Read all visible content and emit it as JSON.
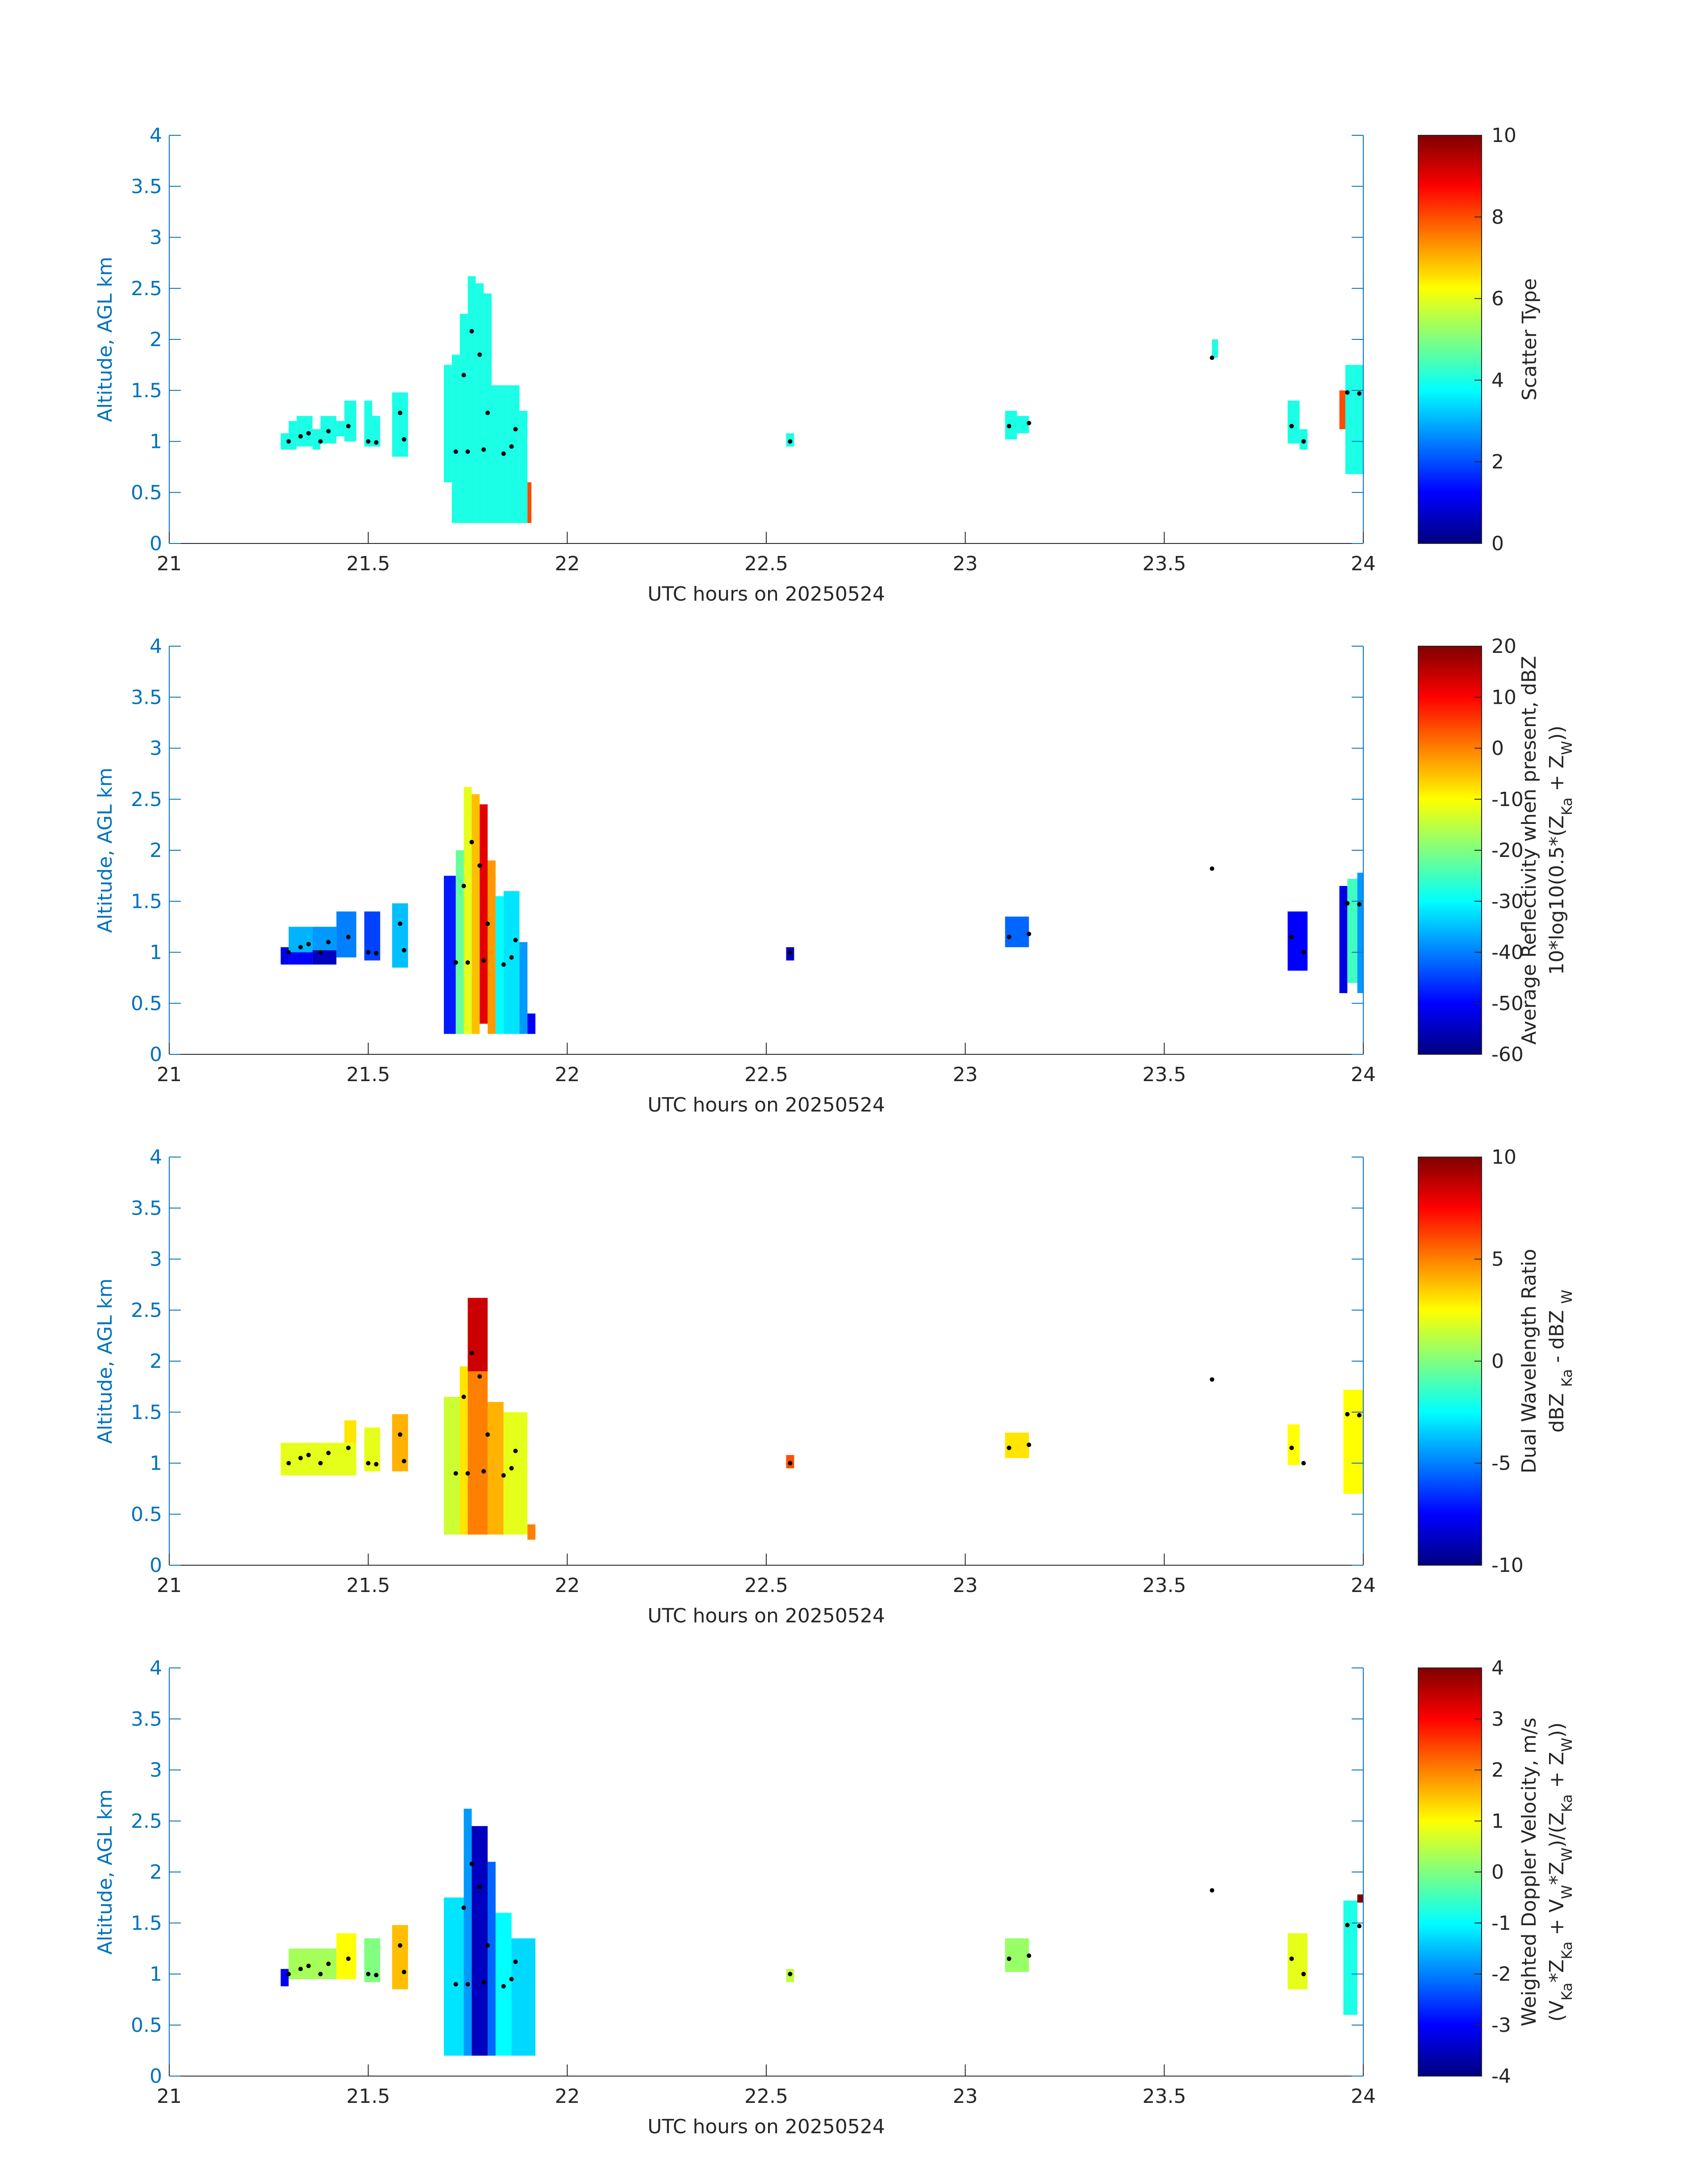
{
  "chart_data": [
    {
      "type": "heatmap",
      "xlabel": "UTC hours on 20250524",
      "ylabel": "Altitude, AGL km",
      "xlim": [
        21,
        24
      ],
      "ylim": [
        0,
        4
      ],
      "xticks": [
        21,
        21.5,
        22,
        22.5,
        23,
        23.5,
        24
      ],
      "yticks": [
        0,
        0.5,
        1,
        1.5,
        2,
        2.5,
        3,
        3.5,
        4
      ],
      "colormap": "jet",
      "clim": [
        0,
        10
      ],
      "cticks": [
        0,
        2,
        4,
        6,
        8,
        10
      ],
      "colorbar_label": [
        [
          "Scatter Type"
        ]
      ],
      "cells": [
        [
          21.28,
          21.3,
          0.92,
          1.08,
          4
        ],
        [
          21.3,
          21.32,
          0.92,
          1.2,
          4
        ],
        [
          21.32,
          21.36,
          0.95,
          1.25,
          4
        ],
        [
          21.36,
          21.38,
          0.92,
          1.12,
          4
        ],
        [
          21.38,
          21.42,
          0.98,
          1.25,
          4
        ],
        [
          21.42,
          21.44,
          1.05,
          1.2,
          4
        ],
        [
          21.44,
          21.47,
          1.0,
          1.4,
          4
        ],
        [
          21.49,
          21.51,
          0.95,
          1.4,
          4
        ],
        [
          21.51,
          21.53,
          0.95,
          1.25,
          4
        ],
        [
          21.56,
          21.6,
          0.85,
          1.48,
          4
        ],
        [
          21.69,
          21.71,
          0.6,
          1.75,
          4
        ],
        [
          21.71,
          21.73,
          0.2,
          1.85,
          4
        ],
        [
          21.73,
          21.75,
          0.2,
          2.25,
          4
        ],
        [
          21.75,
          21.77,
          0.2,
          2.62,
          4
        ],
        [
          21.77,
          21.79,
          0.2,
          2.55,
          4
        ],
        [
          21.79,
          21.81,
          0.2,
          2.45,
          4
        ],
        [
          21.81,
          21.85,
          0.2,
          1.55,
          4
        ],
        [
          21.85,
          21.88,
          0.2,
          1.55,
          4
        ],
        [
          21.88,
          21.9,
          0.2,
          1.3,
          4
        ],
        [
          21.9,
          21.91,
          0.2,
          0.6,
          8
        ],
        [
          22.55,
          22.57,
          0.95,
          1.08,
          4
        ],
        [
          23.1,
          23.13,
          1.02,
          1.3,
          4
        ],
        [
          23.13,
          23.16,
          1.08,
          1.25,
          4
        ],
        [
          23.62,
          23.635,
          1.82,
          2.0,
          4
        ],
        [
          23.81,
          23.84,
          0.98,
          1.4,
          4
        ],
        [
          23.84,
          23.86,
          0.92,
          1.12,
          4
        ],
        [
          23.94,
          23.955,
          1.12,
          1.5,
          8
        ],
        [
          23.955,
          23.975,
          0.68,
          1.75,
          4
        ],
        [
          23.975,
          24.0,
          0.68,
          1.75,
          4
        ]
      ],
      "points": [
        [
          21.3,
          1.0
        ],
        [
          21.33,
          1.05
        ],
        [
          21.35,
          1.08
        ],
        [
          21.38,
          1.0
        ],
        [
          21.4,
          1.1
        ],
        [
          21.45,
          1.15
        ],
        [
          21.5,
          1.0
        ],
        [
          21.52,
          0.99
        ],
        [
          21.58,
          1.28
        ],
        [
          21.59,
          1.02
        ],
        [
          21.72,
          0.9
        ],
        [
          21.74,
          1.65
        ],
        [
          21.75,
          0.9
        ],
        [
          21.76,
          2.08
        ],
        [
          21.78,
          1.85
        ],
        [
          21.79,
          0.92
        ],
        [
          21.8,
          1.28
        ],
        [
          21.84,
          0.88
        ],
        [
          21.86,
          0.95
        ],
        [
          21.87,
          1.12
        ],
        [
          22.56,
          1.0
        ],
        [
          23.11,
          1.15
        ],
        [
          23.16,
          1.18
        ],
        [
          23.62,
          1.82
        ],
        [
          23.82,
          1.15
        ],
        [
          23.85,
          1.0
        ],
        [
          23.96,
          1.48
        ],
        [
          23.99,
          1.47
        ]
      ]
    },
    {
      "type": "heatmap",
      "xlabel": "UTC hours on 20250524",
      "ylabel": "Altitude, AGL km",
      "xlim": [
        21,
        24
      ],
      "ylim": [
        0,
        4
      ],
      "xticks": [
        21,
        21.5,
        22,
        22.5,
        23,
        23.5,
        24
      ],
      "yticks": [
        0,
        0.5,
        1,
        1.5,
        2,
        2.5,
        3,
        3.5,
        4
      ],
      "colormap": "jet",
      "clim": [
        -60,
        20
      ],
      "cticks": [
        -60,
        -50,
        -40,
        -30,
        -20,
        -10,
        0,
        10,
        20
      ],
      "colorbar_label": [
        [
          "Average Reflectivity when present, dBZ"
        ],
        [
          "10*log10(0.5*(Z",
          "Ka",
          " + Z",
          "W",
          "))"
        ]
      ],
      "cells": [
        [
          21.28,
          21.3,
          0.88,
          1.05,
          -52
        ],
        [
          21.3,
          21.36,
          0.88,
          1.0,
          -50
        ],
        [
          21.3,
          21.36,
          1.0,
          1.25,
          -36
        ],
        [
          21.36,
          21.42,
          0.88,
          1.02,
          -55
        ],
        [
          21.36,
          21.42,
          1.02,
          1.25,
          -38
        ],
        [
          21.42,
          21.47,
          0.95,
          1.4,
          -40
        ],
        [
          21.49,
          21.53,
          0.92,
          1.4,
          -45
        ],
        [
          21.56,
          21.6,
          0.85,
          1.48,
          -35
        ],
        [
          21.69,
          21.72,
          0.2,
          1.75,
          -48
        ],
        [
          21.72,
          21.74,
          0.2,
          2.0,
          -22
        ],
        [
          21.74,
          21.76,
          0.2,
          2.62,
          -12
        ],
        [
          21.76,
          21.78,
          0.2,
          2.55,
          -5
        ],
        [
          21.78,
          21.8,
          0.3,
          2.45,
          12
        ],
        [
          21.8,
          21.82,
          0.2,
          1.9,
          -2
        ],
        [
          21.82,
          21.84,
          0.2,
          1.55,
          -30
        ],
        [
          21.84,
          21.88,
          0.2,
          1.6,
          -32
        ],
        [
          21.88,
          21.9,
          0.2,
          1.1,
          -38
        ],
        [
          21.9,
          21.92,
          0.2,
          0.4,
          -50
        ],
        [
          22.55,
          22.57,
          0.92,
          1.05,
          -55
        ],
        [
          23.1,
          23.16,
          1.05,
          1.35,
          -42
        ],
        [
          23.81,
          23.86,
          0.82,
          1.4,
          -50
        ],
        [
          23.94,
          23.96,
          0.6,
          1.65,
          -52
        ],
        [
          23.96,
          23.985,
          0.7,
          1.72,
          -25
        ],
        [
          23.985,
          24.0,
          0.6,
          1.78,
          -38
        ]
      ],
      "points": [
        [
          21.3,
          1.0
        ],
        [
          21.33,
          1.05
        ],
        [
          21.35,
          1.08
        ],
        [
          21.38,
          1.0
        ],
        [
          21.4,
          1.1
        ],
        [
          21.45,
          1.15
        ],
        [
          21.5,
          1.0
        ],
        [
          21.52,
          0.99
        ],
        [
          21.58,
          1.28
        ],
        [
          21.59,
          1.02
        ],
        [
          21.72,
          0.9
        ],
        [
          21.74,
          1.65
        ],
        [
          21.75,
          0.9
        ],
        [
          21.76,
          2.08
        ],
        [
          21.78,
          1.85
        ],
        [
          21.79,
          0.92
        ],
        [
          21.8,
          1.28
        ],
        [
          21.84,
          0.88
        ],
        [
          21.86,
          0.95
        ],
        [
          21.87,
          1.12
        ],
        [
          22.56,
          1.0
        ],
        [
          23.11,
          1.15
        ],
        [
          23.16,
          1.18
        ],
        [
          23.62,
          1.82
        ],
        [
          23.82,
          1.15
        ],
        [
          23.85,
          1.0
        ],
        [
          23.96,
          1.48
        ],
        [
          23.99,
          1.47
        ]
      ]
    },
    {
      "type": "heatmap",
      "xlabel": "UTC hours on 20250524",
      "ylabel": "Altitude, AGL km",
      "xlim": [
        21,
        24
      ],
      "ylim": [
        0,
        4
      ],
      "xticks": [
        21,
        21.5,
        22,
        22.5,
        23,
        23.5,
        24
      ],
      "yticks": [
        0,
        0.5,
        1,
        1.5,
        2,
        2.5,
        3,
        3.5,
        4
      ],
      "colormap": "jet",
      "clim": [
        -10,
        10
      ],
      "cticks": [
        -10,
        -5,
        0,
        5,
        10
      ],
      "colorbar_label": [
        [
          "Dual Wavelength Ratio"
        ],
        [
          "dBZ ",
          "Ka",
          " - dBZ ",
          "W"
        ]
      ],
      "cells": [
        [
          21.28,
          21.47,
          0.88,
          1.2,
          2
        ],
        [
          21.44,
          21.47,
          1.2,
          1.42,
          3
        ],
        [
          21.49,
          21.53,
          0.92,
          1.35,
          2
        ],
        [
          21.56,
          21.6,
          0.92,
          1.48,
          4
        ],
        [
          21.69,
          21.73,
          0.3,
          1.65,
          1.5
        ],
        [
          21.73,
          21.75,
          0.3,
          1.95,
          3
        ],
        [
          21.75,
          21.8,
          0.3,
          1.9,
          5
        ],
        [
          21.75,
          21.8,
          1.9,
          2.62,
          8.5
        ],
        [
          21.8,
          21.84,
          0.3,
          1.6,
          4
        ],
        [
          21.84,
          21.9,
          0.3,
          1.5,
          2
        ],
        [
          21.9,
          21.92,
          0.25,
          0.4,
          5
        ],
        [
          22.55,
          22.57,
          0.95,
          1.08,
          6
        ],
        [
          23.1,
          23.16,
          1.05,
          1.3,
          3
        ],
        [
          23.81,
          23.84,
          0.98,
          1.38,
          2.5
        ],
        [
          23.95,
          24.0,
          0.7,
          1.72,
          2.5
        ]
      ],
      "points": [
        [
          21.3,
          1.0
        ],
        [
          21.33,
          1.05
        ],
        [
          21.35,
          1.08
        ],
        [
          21.38,
          1.0
        ],
        [
          21.4,
          1.1
        ],
        [
          21.45,
          1.15
        ],
        [
          21.5,
          1.0
        ],
        [
          21.52,
          0.99
        ],
        [
          21.58,
          1.28
        ],
        [
          21.59,
          1.02
        ],
        [
          21.72,
          0.9
        ],
        [
          21.74,
          1.65
        ],
        [
          21.75,
          0.9
        ],
        [
          21.76,
          2.08
        ],
        [
          21.78,
          1.85
        ],
        [
          21.79,
          0.92
        ],
        [
          21.8,
          1.28
        ],
        [
          21.84,
          0.88
        ],
        [
          21.86,
          0.95
        ],
        [
          21.87,
          1.12
        ],
        [
          22.56,
          1.0
        ],
        [
          23.11,
          1.15
        ],
        [
          23.16,
          1.18
        ],
        [
          23.62,
          1.82
        ],
        [
          23.82,
          1.15
        ],
        [
          23.85,
          1.0
        ],
        [
          23.96,
          1.48
        ],
        [
          23.99,
          1.47
        ]
      ]
    },
    {
      "type": "heatmap",
      "xlabel": "UTC hours on 20250524",
      "ylabel": "Altitude, AGL km",
      "xlim": [
        21,
        24
      ],
      "ylim": [
        0,
        4
      ],
      "xticks": [
        21,
        21.5,
        22,
        22.5,
        23,
        23.5,
        24
      ],
      "yticks": [
        0,
        0.5,
        1,
        1.5,
        2,
        2.5,
        3,
        3.5,
        4
      ],
      "colormap": "jet",
      "clim": [
        -4,
        4
      ],
      "cticks": [
        -4,
        -3,
        -2,
        -1,
        0,
        1,
        2,
        3,
        4
      ],
      "colorbar_label": [
        [
          "Weighted Doppler Velocity, m/s"
        ],
        [
          "(V",
          "Ka",
          "*Z",
          "Ka",
          " + V",
          "W",
          "*Z",
          "W",
          ")/(Z",
          "Ka",
          " + Z",
          "W",
          "))"
        ]
      ],
      "cells": [
        [
          21.28,
          21.3,
          0.88,
          1.05,
          -3
        ],
        [
          21.3,
          21.42,
          0.95,
          1.25,
          0.3
        ],
        [
          21.42,
          21.47,
          0.95,
          1.4,
          1
        ],
        [
          21.49,
          21.53,
          0.92,
          1.35,
          0
        ],
        [
          21.56,
          21.6,
          0.85,
          1.48,
          1.5
        ],
        [
          21.69,
          21.74,
          0.2,
          1.75,
          -1.2
        ],
        [
          21.74,
          21.76,
          0.2,
          2.62,
          -1.8
        ],
        [
          21.76,
          21.8,
          0.2,
          2.45,
          -3.5
        ],
        [
          21.8,
          21.82,
          0.2,
          2.1,
          -2.2
        ],
        [
          21.82,
          21.86,
          0.2,
          1.6,
          -1
        ],
        [
          21.86,
          21.92,
          0.2,
          1.35,
          -1.3
        ],
        [
          22.55,
          22.57,
          0.92,
          1.05,
          0.5
        ],
        [
          23.1,
          23.16,
          1.02,
          1.35,
          0.2
        ],
        [
          23.81,
          23.86,
          0.85,
          1.4,
          0.8
        ],
        [
          23.95,
          23.985,
          0.6,
          1.72,
          -0.8
        ],
        [
          23.985,
          24.0,
          1.7,
          1.78,
          4
        ]
      ],
      "points": [
        [
          21.3,
          1.0
        ],
        [
          21.33,
          1.05
        ],
        [
          21.35,
          1.08
        ],
        [
          21.38,
          1.0
        ],
        [
          21.4,
          1.1
        ],
        [
          21.45,
          1.15
        ],
        [
          21.5,
          1.0
        ],
        [
          21.52,
          0.99
        ],
        [
          21.58,
          1.28
        ],
        [
          21.59,
          1.02
        ],
        [
          21.72,
          0.9
        ],
        [
          21.74,
          1.65
        ],
        [
          21.75,
          0.9
        ],
        [
          21.76,
          2.08
        ],
        [
          21.78,
          1.85
        ],
        [
          21.79,
          0.92
        ],
        [
          21.8,
          1.28
        ],
        [
          21.84,
          0.88
        ],
        [
          21.86,
          0.95
        ],
        [
          21.87,
          1.12
        ],
        [
          22.56,
          1.0
        ],
        [
          23.11,
          1.15
        ],
        [
          23.16,
          1.18
        ],
        [
          23.62,
          1.82
        ],
        [
          23.82,
          1.15
        ],
        [
          23.85,
          1.0
        ],
        [
          23.96,
          1.48
        ],
        [
          23.99,
          1.47
        ]
      ]
    }
  ]
}
